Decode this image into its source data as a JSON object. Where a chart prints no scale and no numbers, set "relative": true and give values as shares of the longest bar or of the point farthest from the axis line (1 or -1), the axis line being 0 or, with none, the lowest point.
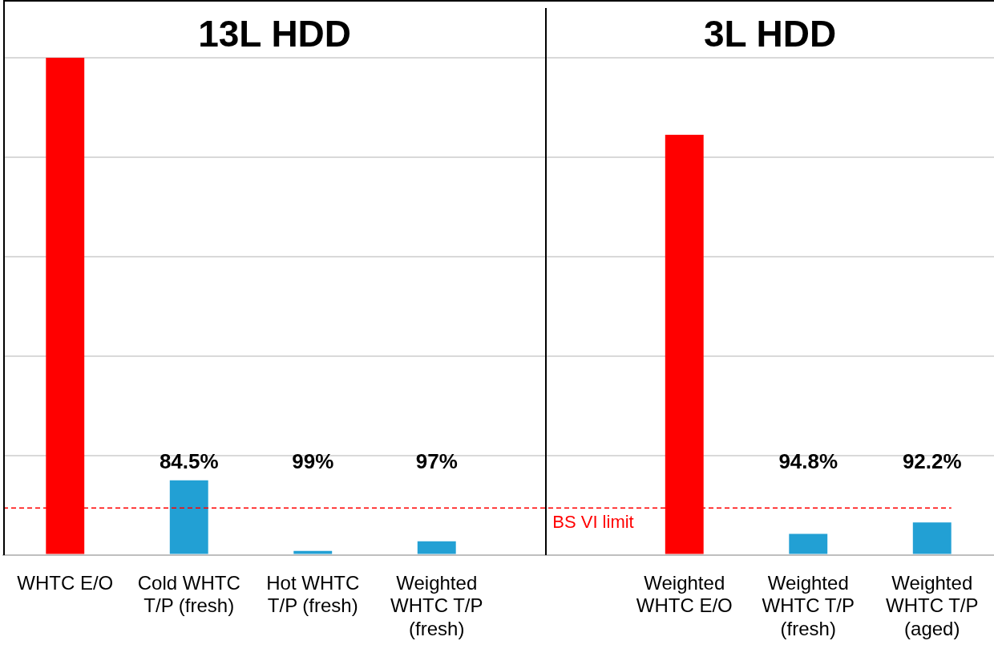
{
  "chart_data": {
    "type": "bar",
    "relative": true,
    "grid": "y",
    "annotations": [
      "13L HDD",
      "3L HDD",
      "84.5%",
      "99%",
      "97%",
      "94.8%",
      "92.2%"
    ],
    "categories": [
      "WHTC E/O",
      "Cold WHTC T/P (fresh)",
      "Hot WHTC T/P (fresh)",
      "Weighted WHTC T/P (fresh)",
      null,
      "Weighted WHTC E/O",
      "Weighted WHTC T/P (fresh)",
      "Weighted WHTC T/P (aged)"
    ],
    "values": [
      1,
      0.15,
      0.008,
      0.027,
      null,
      0.845,
      0.042,
      0.065
    ],
    "colors": [
      "#ff0000",
      "#22a0d4",
      "#22a0d4",
      "#22a0d4",
      "#ffffff",
      "#ff0000",
      "#22a0d4",
      "#22a0d4"
    ],
    "ref_lines": [
      {
        "axis": "y",
        "value": 0.094,
        "label": "BS VI limit",
        "color": "#ff0000",
        "line_style": "dashed"
      }
    ]
  }
}
